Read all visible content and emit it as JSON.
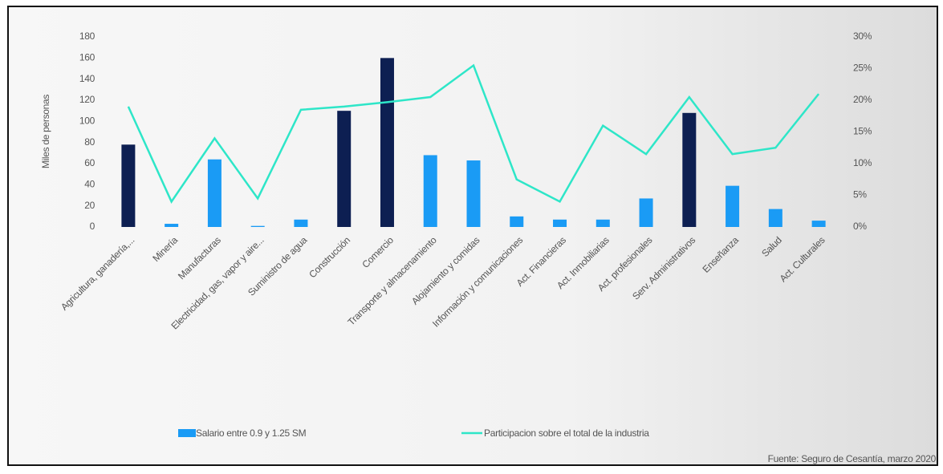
{
  "chart_data": {
    "type": "bar_line",
    "y_label": "Miles de personas",
    "source": "Fuente: Seguro de Cesantía, marzo 2020",
    "categories": [
      "Agricultura, ganadería,...",
      "Minería",
      "Manufacturas",
      "Electricidad, gas, vapor y aire...",
      "Suministro de agua",
      "Construcción",
      "Comercio",
      "Transporte y almacenamiento",
      "Alojamiento y comidas",
      "Información y comunicaciones",
      "Act. Financieras",
      "Act. Inmobiliarias",
      "Act. profesionales",
      "Serv. Administrativos",
      "Enseñanza",
      "Salud",
      "Act. Culturales"
    ],
    "series": [
      {
        "name": "Salario entre 0.9 y 1.25 SM",
        "type": "bar",
        "color": "#1a9bf5",
        "colors": [
          "#0d1f52",
          "#1a9bf5",
          "#1a9bf5",
          "#1a9bf5",
          "#1a9bf5",
          "#0d1f52",
          "#0d1f52",
          "#1a9bf5",
          "#1a9bf5",
          "#1a9bf5",
          "#1a9bf5",
          "#1a9bf5",
          "#1a9bf5",
          "#0d1f52",
          "#1a9bf5",
          "#1a9bf5",
          "#1a9bf5"
        ],
        "values": [
          78,
          3,
          64,
          1,
          7,
          110,
          160,
          68,
          63,
          10,
          7,
          7,
          27,
          108,
          39,
          17,
          6
        ]
      },
      {
        "name": "Participacion sobre el total de la industria",
        "type": "line",
        "axis": "y2",
        "color": "#2ee6c8",
        "values": [
          19,
          4,
          14,
          4.5,
          18.5,
          19,
          19.7,
          20.5,
          25.5,
          7.5,
          4,
          16,
          11.5,
          20.5,
          11.5,
          12.5,
          21
        ]
      }
    ],
    "ylim": [
      0,
      180
    ],
    "yticks": [
      0,
      20,
      40,
      60,
      80,
      100,
      120,
      140,
      160,
      180
    ],
    "y2lim": [
      0,
      30
    ],
    "y2ticks": [
      {
        "value": 0,
        "label": "0%"
      },
      {
        "value": 5,
        "label": "5%"
      },
      {
        "value": 10,
        "label": "10%"
      },
      {
        "value": 15,
        "label": "15%"
      },
      {
        "value": 20,
        "label": "20%"
      },
      {
        "value": 25,
        "label": "25%"
      },
      {
        "value": 30,
        "label": "30%"
      }
    ]
  }
}
